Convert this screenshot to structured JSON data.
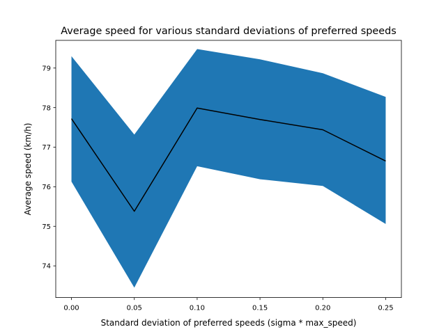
{
  "chart_data": {
    "type": "area",
    "title": "Average speed for various standard deviations of preferred speeds",
    "xlabel": "Standard deviation of preferred speeds (sigma * max_speed)",
    "ylabel": "Average speed (km/h)",
    "x": [
      0.0,
      0.05,
      0.1,
      0.15,
      0.2,
      0.25
    ],
    "xticks": [
      "0.00",
      "0.05",
      "0.10",
      "0.15",
      "0.20",
      "0.25"
    ],
    "yticks": [
      "74",
      "75",
      "76",
      "77",
      "78",
      "79"
    ],
    "xlim": [
      -0.0125,
      0.2625
    ],
    "ylim": [
      73.2,
      79.7
    ],
    "grid": false,
    "series": [
      {
        "mean": [
          77.72,
          75.38,
          77.99,
          77.7,
          77.44,
          76.65
        ],
        "lower": [
          76.13,
          73.45,
          76.52,
          76.19,
          76.02,
          75.06
        ],
        "upper": [
          79.3,
          77.32,
          79.48,
          79.22,
          78.87,
          78.27
        ],
        "fill_color": "#1f77b4",
        "line_color": "#000000"
      }
    ]
  }
}
